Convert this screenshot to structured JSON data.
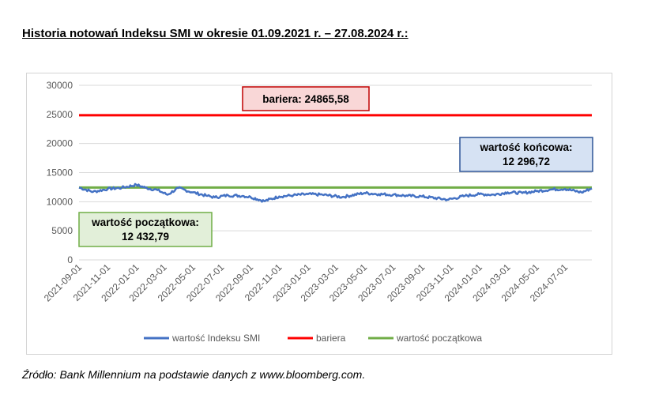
{
  "title": "Historia notowań Indeksu SMI w okresie 01.09.2021 r. – 27.08.2024 r.:",
  "source": "Źródło: Bank Millennium na podstawie danych z www.bloomberg.com.",
  "chart_data": {
    "type": "line",
    "ylim": [
      0,
      30000
    ],
    "yticks": [
      "30000",
      "25000",
      "20000",
      "15000",
      "10000",
      "5000",
      "0"
    ],
    "ytick_values": [
      30000,
      25000,
      20000,
      15000,
      10000,
      5000,
      0
    ],
    "xticks": [
      "2021-09-01",
      "2021-11-01",
      "2022-01-01",
      "2022-03-01",
      "2022-05-01",
      "2022-07-01",
      "2022-09-01",
      "2022-11-01",
      "2023-01-01",
      "2023-03-01",
      "2023-05-01",
      "2023-07-01",
      "2023-09-01",
      "2023-11-01",
      "2024-01-01",
      "2024-03-01",
      "2024-05-01",
      "2024-07-01"
    ],
    "x_range": [
      "2021-09-01",
      "2024-08-27"
    ],
    "grid": true,
    "legend_position": "bottom",
    "series": [
      {
        "name": "wartość Indeksu SMI",
        "color": "#4472C4",
        "dates": [
          "2021-09-01",
          "2021-10-01",
          "2021-11-01",
          "2021-12-01",
          "2022-01-01",
          "2022-01-20",
          "2022-02-15",
          "2022-03-08",
          "2022-03-31",
          "2022-05-01",
          "2022-06-01",
          "2022-06-17",
          "2022-07-15",
          "2022-08-15",
          "2022-09-01",
          "2022-09-30",
          "2022-11-01",
          "2022-12-01",
          "2023-01-01",
          "2023-02-01",
          "2023-03-15",
          "2023-05-01",
          "2023-06-01",
          "2023-07-01",
          "2023-08-01",
          "2023-09-01",
          "2023-10-27",
          "2023-12-01",
          "2024-01-01",
          "2024-02-01",
          "2024-03-01",
          "2024-04-01",
          "2024-05-01",
          "2024-06-01",
          "2024-07-01",
          "2024-08-05",
          "2024-08-27"
        ],
        "values": [
          12432.79,
          11700,
          12200,
          12400,
          12900,
          12400,
          12000,
          11200,
          12350,
          11600,
          11000,
          10750,
          11100,
          11000,
          10800,
          10100,
          10900,
          11100,
          11300,
          11200,
          10800,
          11500,
          11300,
          11200,
          11000,
          10900,
          10350,
          11000,
          11300,
          11200,
          11600,
          11500,
          11800,
          12100,
          12200,
          11600,
          12296.72
        ]
      },
      {
        "name": "bariera",
        "color": "#FF0000",
        "value": 24865.58
      },
      {
        "name": "wartość początkowa",
        "color": "#70AD47",
        "value": 12432.79
      }
    ],
    "annotations": {
      "barrier": {
        "label": "bariera:  24865,58",
        "fill": "#F9D7D7",
        "border": "#C00000"
      },
      "final": {
        "line1": "wartość końcowa:",
        "line2": "12 296,72",
        "fill": "#D6E2F3",
        "border": "#2F5597"
      },
      "initial": {
        "line1": "wartość początkowa:",
        "line2": "12 432,79",
        "fill": "#E2EFD9",
        "border": "#70AD47"
      }
    }
  }
}
